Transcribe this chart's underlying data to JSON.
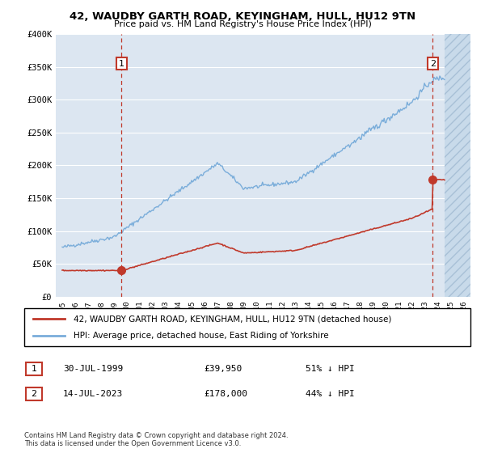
{
  "title": "42, WAUDBY GARTH ROAD, KEYINGHAM, HULL, HU12 9TN",
  "subtitle": "Price paid vs. HM Land Registry's House Price Index (HPI)",
  "ylim": [
    0,
    400000
  ],
  "yticks": [
    0,
    50000,
    100000,
    150000,
    200000,
    250000,
    300000,
    350000,
    400000
  ],
  "ytick_labels": [
    "£0",
    "£50K",
    "£100K",
    "£150K",
    "£200K",
    "£250K",
    "£300K",
    "£350K",
    "£400K"
  ],
  "bg_color": "#dce6f1",
  "hatch_color": "#b8cce4",
  "sale1_date": "30-JUL-1999",
  "sale1_price": 39950,
  "sale2_date": "14-JUL-2023",
  "sale2_price": 178000,
  "sale1_pct": "51% ↓ HPI",
  "sale2_pct": "44% ↓ HPI",
  "legend_line1": "42, WAUDBY GARTH ROAD, KEYINGHAM, HULL, HU12 9TN (detached house)",
  "legend_line2": "HPI: Average price, detached house, East Riding of Yorkshire",
  "footer": "Contains HM Land Registry data © Crown copyright and database right 2024.\nThis data is licensed under the Open Government Licence v3.0.",
  "red_line_color": "#c0392b",
  "blue_line_color": "#7aadda",
  "dashed_vline_color": "#c0392b",
  "box_color": "#c0392b",
  "future_hatch_start_year": 2024.5,
  "xlim_left": 1994.5,
  "xlim_right": 2026.5
}
